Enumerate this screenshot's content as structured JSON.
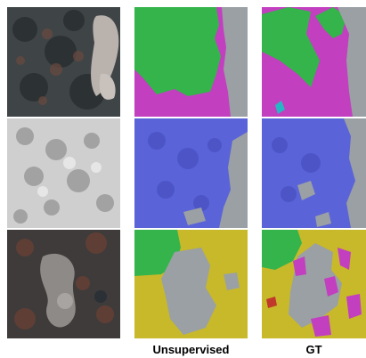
{
  "figure": {
    "columns": [
      {
        "id": "input",
        "label": ""
      },
      {
        "id": "unsupervised",
        "label": "Unsupervised"
      },
      {
        "id": "gt",
        "label": "GT"
      }
    ],
    "rows": 3
  },
  "colors": {
    "green": "#34b44a",
    "magenta": "#c23fc0",
    "blue": "#5a63d8",
    "yellow": "#c8b92a",
    "gray": "#9aa0a4",
    "red": "#c0392b",
    "cyan": "#27b6c4",
    "divider": "#ffffff"
  }
}
